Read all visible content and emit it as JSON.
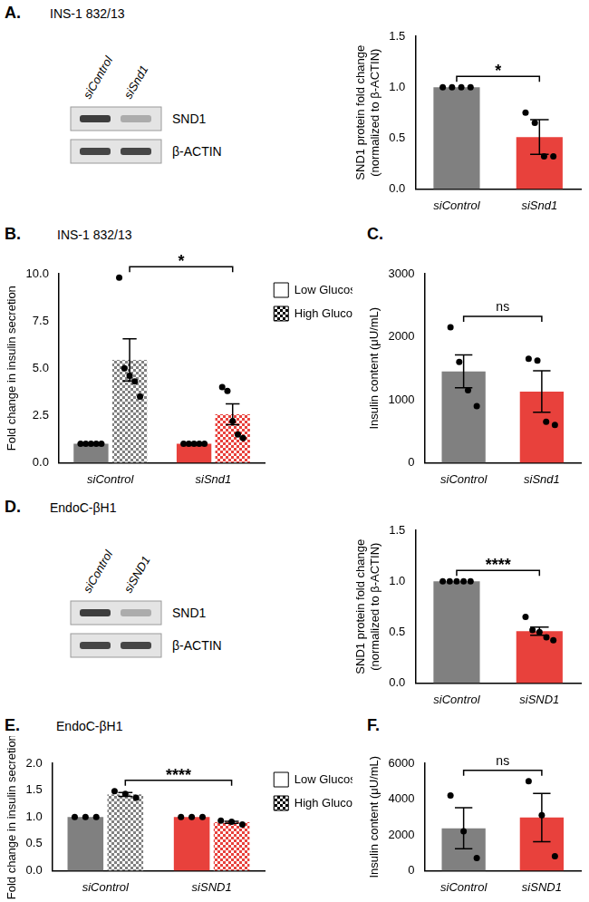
{
  "blots": [
    {
      "panel": "A.",
      "title": "INS-1 832/13",
      "lanes": [
        "siControl",
        "siSnd1"
      ],
      "bands": [
        "SND1",
        "β-ACTIN"
      ]
    },
    {
      "panel": "D.",
      "title": "EndoC-βH1",
      "lanes": [
        "siControl",
        "siSND1"
      ],
      "bands": [
        "SND1",
        "β-ACTIN"
      ]
    }
  ],
  "chart_data": [
    {
      "type": "bar",
      "categories": [
        "siControl",
        "siSnd1"
      ],
      "values": [
        1.0,
        0.51
      ],
      "errors": [
        null,
        0.17
      ],
      "points": [
        [
          1,
          1,
          1,
          1
        ],
        [
          0.75,
          0.65,
          0.32,
          0.32
        ]
      ],
      "colors": [
        "#808080",
        "#e8413c"
      ],
      "y_label": [
        "SND1 protein fold change",
        "(normalized to β-ACTIN)"
      ],
      "ylim": [
        0,
        1.5
      ],
      "yticks": [
        {
          "value": 0,
          "label": "0.0"
        },
        {
          "value": 0.5,
          "label": "0.5"
        },
        {
          "value": 1,
          "label": "1.0"
        },
        {
          "value": 1.5,
          "label": "1.5"
        }
      ],
      "grid": false,
      "annotations": [
        {
          "text": "*",
          "between": [
            "siControl",
            "siSnd1"
          ]
        }
      ]
    },
    {
      "type": "bar",
      "panel": "B.",
      "title": "INS-1 832/13",
      "categories": [
        "siControl",
        "siSnd1"
      ],
      "series": [
        {
          "name": "Low Glucose",
          "colors": [
            "#808080",
            "#e8413c"
          ],
          "values": [
            1,
            1
          ],
          "errors": [
            null,
            null
          ],
          "points": [
            [
              1,
              1,
              1,
              1,
              1
            ],
            [
              1,
              1,
              1,
              1,
              1
            ]
          ]
        },
        {
          "name": "High Glucose",
          "colors": [
            "#808080",
            "#e8413c"
          ],
          "values": [
            5.44,
            2.56
          ],
          "errors": [
            1.12,
            0.55
          ],
          "points": [
            [
              9.8,
              5.0,
              4.6,
              4.3,
              3.5
            ],
            [
              4.0,
              3.8,
              2.2,
              1.5,
              1.3
            ]
          ]
        }
      ],
      "legend": "right",
      "y_label": "Fold change in insulin secretion",
      "ylim": [
        0,
        10
      ],
      "yticks": [
        {
          "value": 0,
          "label": "0.0"
        },
        {
          "value": 2.5,
          "label": "2.5"
        },
        {
          "value": 5,
          "label": "5.0"
        },
        {
          "value": 7.5,
          "label": "7.5"
        },
        {
          "value": 10,
          "label": "10.0"
        }
      ],
      "grid": false,
      "annotations": [
        {
          "text": "*",
          "between": [
            "siControl",
            "siSnd1"
          ],
          "series": "High Glucose"
        }
      ]
    },
    {
      "type": "bar",
      "panel": "C.",
      "categories": [
        "siControl",
        "siSnd1"
      ],
      "values": [
        1450,
        1130
      ],
      "errors": [
        260,
        330
      ],
      "points": [
        [
          2150,
          1600,
          1150,
          900
        ],
        [
          1650,
          1620,
          650,
          600
        ]
      ],
      "colors": [
        "#808080",
        "#e8413c"
      ],
      "y_label": "Insulin content (μU/mL)",
      "ylim": [
        0,
        3000
      ],
      "yticks": [
        0,
        1000,
        2000,
        3000
      ],
      "grid": false,
      "annotations": [
        {
          "text": "ns",
          "between": [
            "siControl",
            "siSnd1"
          ]
        }
      ]
    },
    {
      "type": "bar",
      "categories": [
        "siControl",
        "siSND1"
      ],
      "values": [
        1.0,
        0.51
      ],
      "errors": [
        null,
        0.04
      ],
      "points": [
        [
          1,
          1,
          1,
          1,
          1
        ],
        [
          0.65,
          0.52,
          0.5,
          0.45,
          0.42
        ]
      ],
      "colors": [
        "#808080",
        "#e8413c"
      ],
      "y_label": [
        "SND1 protein fold change",
        "(normalized to β-ACTIN)"
      ],
      "ylim": [
        0,
        1.5
      ],
      "yticks": [
        {
          "value": 0,
          "label": "0.0"
        },
        {
          "value": 0.5,
          "label": "0.5"
        },
        {
          "value": 1,
          "label": "1.0"
        },
        {
          "value": 1.5,
          "label": "1.5"
        }
      ],
      "grid": false,
      "annotations": [
        {
          "text": "****",
          "between": [
            "siControl",
            "siSND1"
          ]
        }
      ]
    },
    {
      "type": "bar",
      "panel": "E.",
      "title": "EndoC-βH1",
      "categories": [
        "siControl",
        "siSND1"
      ],
      "series": [
        {
          "name": "Low Glucose",
          "colors": [
            "#808080",
            "#e8413c"
          ],
          "values": [
            1,
            1
          ],
          "errors": [
            null,
            null
          ],
          "points": [
            [
              1,
              1,
              1
            ],
            [
              1,
              1,
              1
            ]
          ]
        },
        {
          "name": "High Glucose",
          "colors": [
            "#808080",
            "#e8413c"
          ],
          "values": [
            1.42,
            0.9
          ],
          "errors": [
            0.035,
            0.02
          ],
          "points": [
            [
              1.48,
              1.43,
              1.36
            ],
            [
              0.93,
              0.91,
              0.86
            ]
          ]
        }
      ],
      "legend": "right",
      "y_label": "Fold change in insulin secretion",
      "ylim": [
        0,
        2
      ],
      "yticks": [
        {
          "value": 0,
          "label": "0.0"
        },
        {
          "value": 0.5,
          "label": "0.5"
        },
        {
          "value": 1,
          "label": "1.0"
        },
        {
          "value": 1.5,
          "label": "1.5"
        },
        {
          "value": 2,
          "label": "2.0"
        }
      ],
      "grid": false,
      "annotations": [
        {
          "text": "****",
          "between": [
            "siControl",
            "siSND1"
          ],
          "series": "High Glucose"
        }
      ]
    },
    {
      "type": "bar",
      "panel": "F.",
      "categories": [
        "siControl",
        "siSND1"
      ],
      "values": [
        2370,
        2970
      ],
      "errors": [
        1150,
        1350
      ],
      "points": [
        [
          4200,
          2200,
          700
        ],
        [
          5000,
          3100,
          800
        ]
      ],
      "colors": [
        "#808080",
        "#e8413c"
      ],
      "y_label": "Insulin content (μU/mL)",
      "ylim": [
        0,
        6000
      ],
      "yticks": [
        0,
        2000,
        4000,
        6000
      ],
      "grid": false,
      "annotations": [
        {
          "text": "ns",
          "between": [
            "siControl",
            "siSND1"
          ]
        }
      ]
    }
  ]
}
